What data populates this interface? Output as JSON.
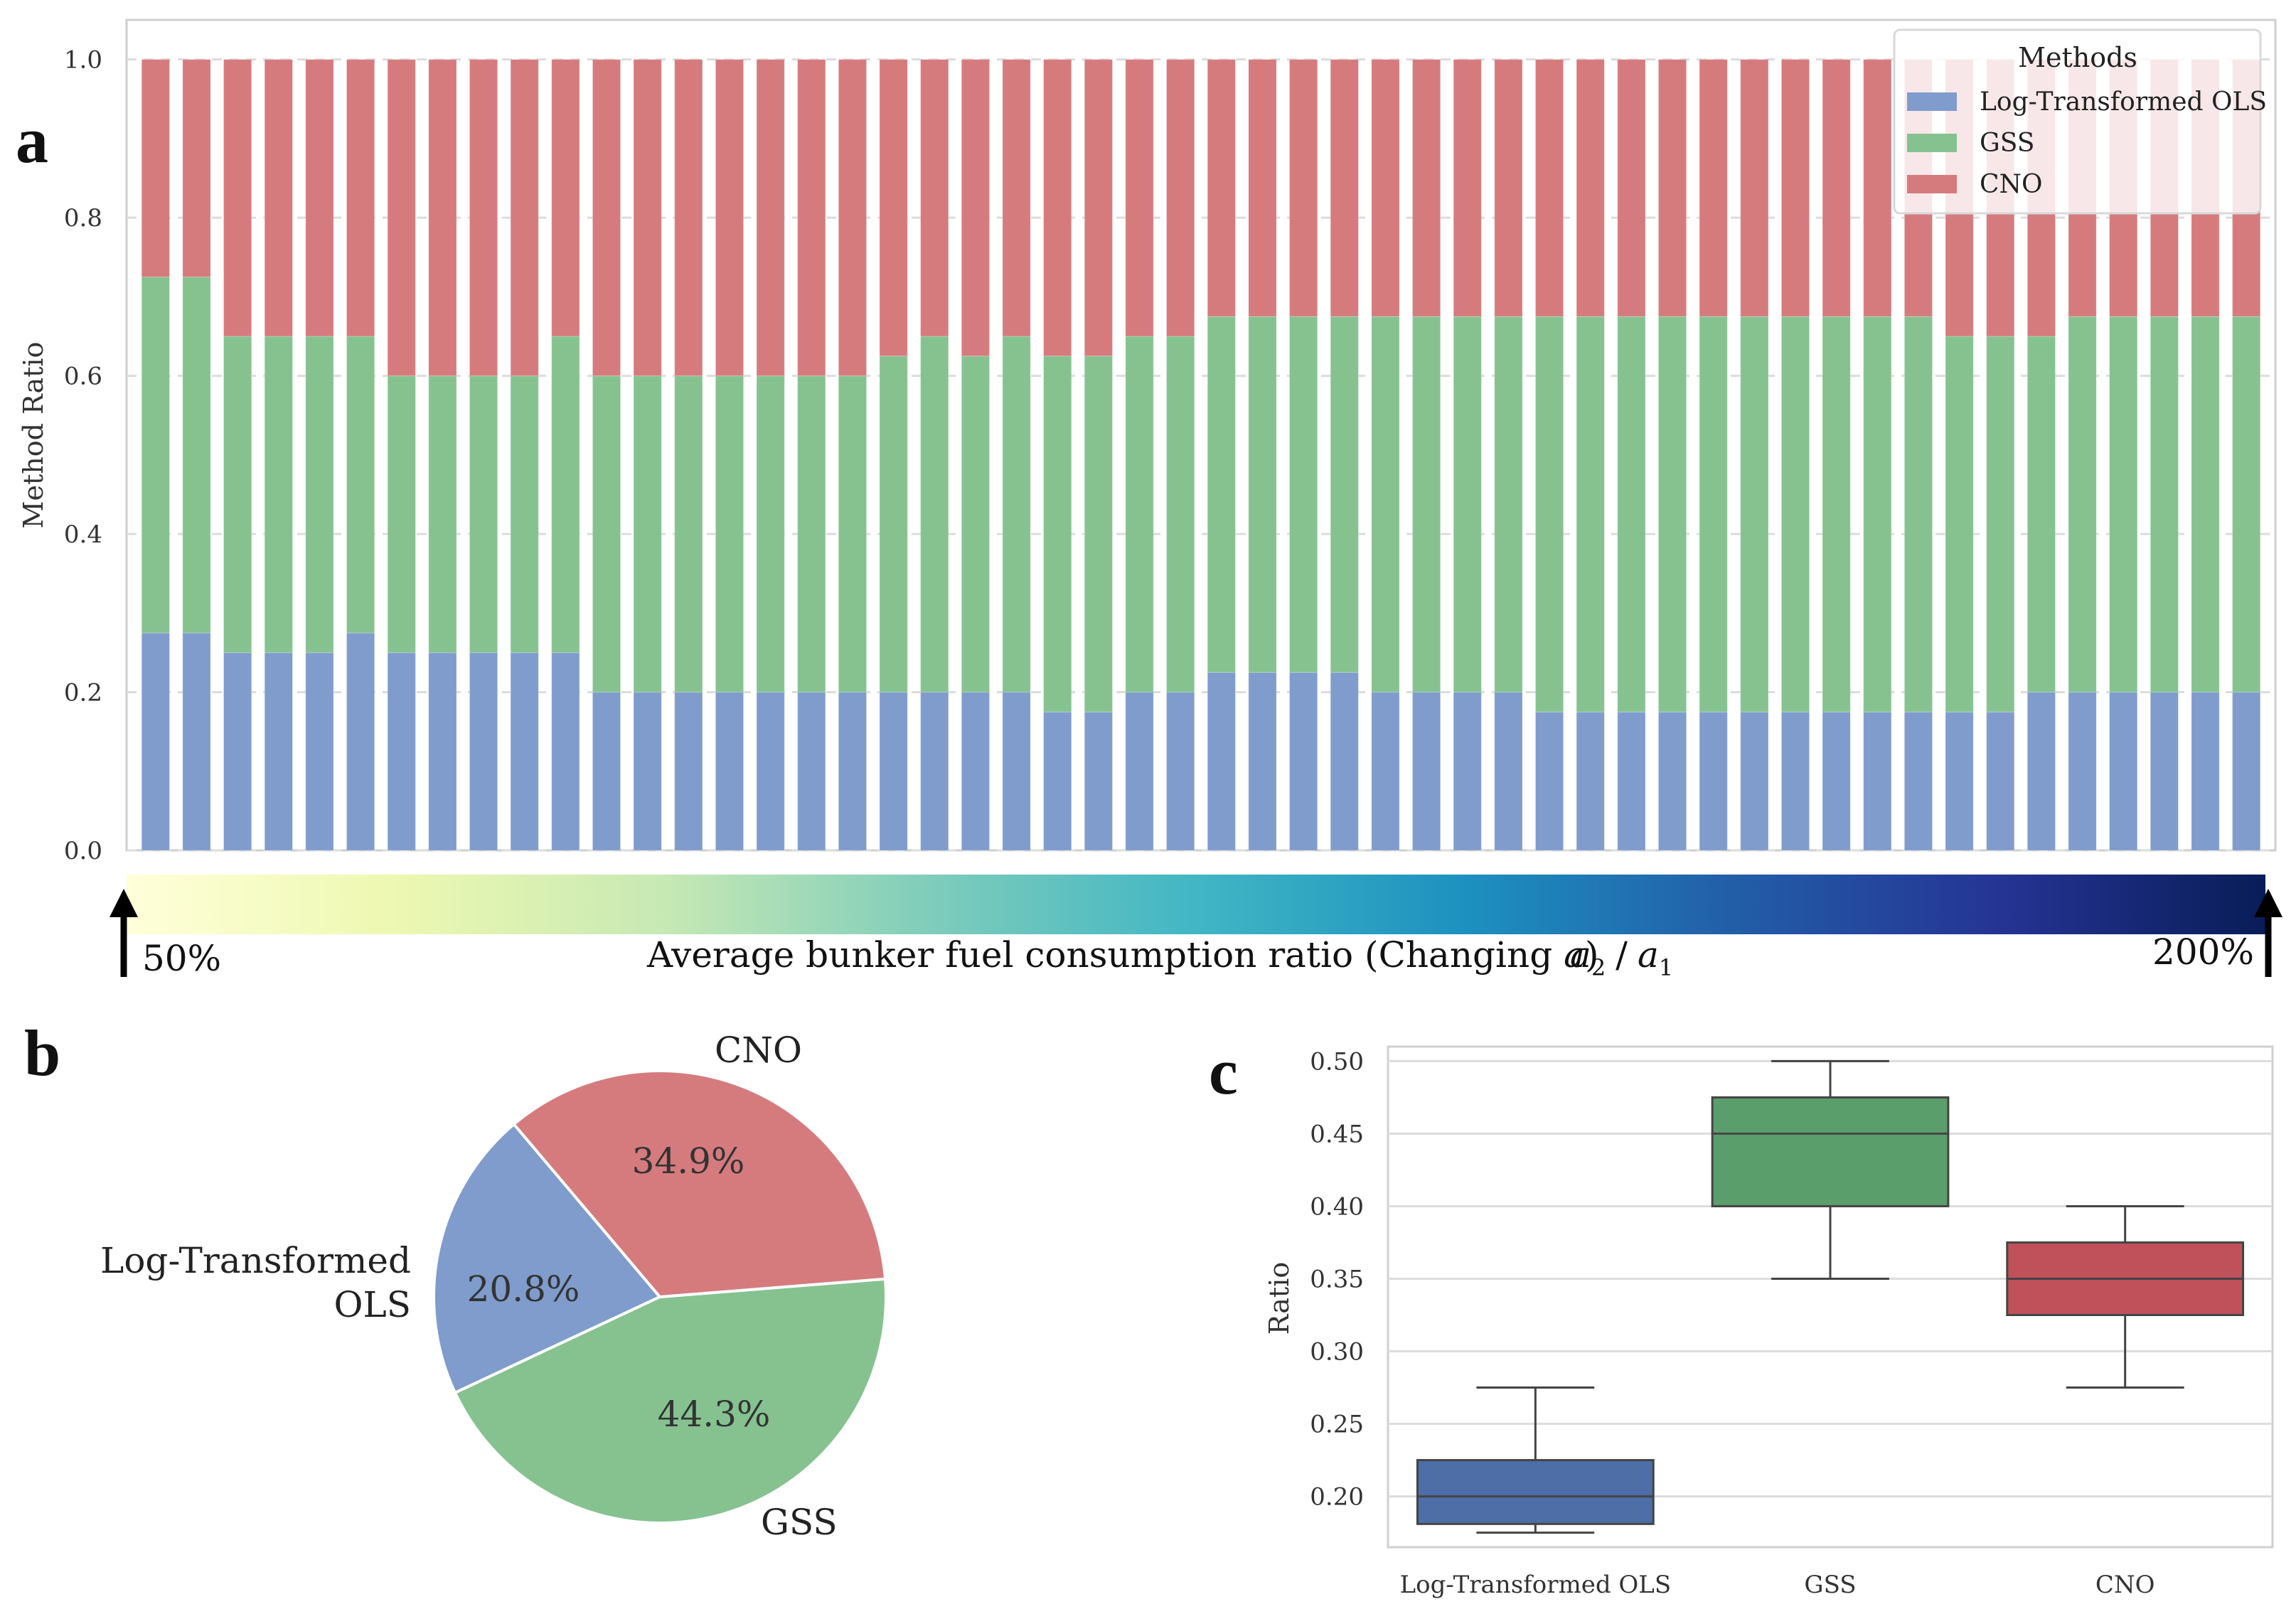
{
  "figure": {
    "panel_labels": [
      "a",
      "b",
      "c"
    ],
    "colorbar": {
      "label": "Average bunker fuel consumption ratio (Changing a)",
      "label_prefix": "Average bunker fuel consumption ratio (Changing ",
      "label_var": "a",
      "label_suffix": ")",
      "ratio_numerator": "a",
      "ratio_numerator_sub": "2",
      "ratio_sep": "/",
      "ratio_denominator": "a",
      "ratio_denominator_sub": "1",
      "min_label": "50%",
      "max_label": "200%",
      "colormap": "YlGnBu"
    }
  },
  "chart_data": [
    {
      "type": "bar",
      "stacked": true,
      "panel": "a",
      "title": "",
      "xlabel": "",
      "ylabel": "Method Ratio",
      "ylim": [
        0,
        1.05
      ],
      "yticks": [
        "0.0",
        "0.2",
        "0.4",
        "0.6",
        "0.8",
        "1.0"
      ],
      "grid": true,
      "legend": {
        "title": "Methods",
        "position": "top-right"
      },
      "series": [
        {
          "name": "Log-Transformed OLS",
          "color": "#7f9ccc",
          "values": [
            0.275,
            0.275,
            0.25,
            0.25,
            0.25,
            0.275,
            0.25,
            0.25,
            0.25,
            0.25,
            0.25,
            0.2,
            0.2,
            0.2,
            0.2,
            0.2,
            0.2,
            0.2,
            0.2,
            0.2,
            0.2,
            0.2,
            0.175,
            0.175,
            0.2,
            0.2,
            0.225,
            0.225,
            0.225,
            0.225,
            0.2,
            0.2,
            0.2,
            0.2,
            0.175,
            0.175,
            0.175,
            0.175,
            0.175,
            0.175,
            0.175,
            0.175,
            0.175,
            0.175,
            0.175,
            0.175,
            0.2,
            0.2,
            0.2,
            0.2,
            0.2,
            0.2
          ]
        },
        {
          "name": "GSS",
          "color": "#85c290",
          "values": [
            0.45,
            0.45,
            0.4,
            0.4,
            0.4,
            0.375,
            0.35,
            0.35,
            0.35,
            0.35,
            0.4,
            0.4,
            0.4,
            0.4,
            0.4,
            0.4,
            0.4,
            0.4,
            0.425,
            0.45,
            0.425,
            0.45,
            0.45,
            0.45,
            0.45,
            0.45,
            0.45,
            0.45,
            0.45,
            0.45,
            0.475,
            0.475,
            0.475,
            0.475,
            0.5,
            0.5,
            0.5,
            0.5,
            0.5,
            0.5,
            0.5,
            0.5,
            0.5,
            0.5,
            0.475,
            0.475,
            0.45,
            0.475,
            0.475,
            0.475,
            0.475,
            0.475
          ]
        },
        {
          "name": "CNO",
          "color": "#d57b7e",
          "values": [
            0.275,
            0.275,
            0.35,
            0.35,
            0.35,
            0.35,
            0.4,
            0.4,
            0.4,
            0.4,
            0.35,
            0.4,
            0.4,
            0.4,
            0.4,
            0.4,
            0.4,
            0.4,
            0.375,
            0.35,
            0.375,
            0.35,
            0.375,
            0.375,
            0.35,
            0.35,
            0.325,
            0.325,
            0.325,
            0.325,
            0.325,
            0.325,
            0.325,
            0.325,
            0.325,
            0.325,
            0.325,
            0.325,
            0.325,
            0.325,
            0.325,
            0.325,
            0.325,
            0.325,
            0.35,
            0.35,
            0.35,
            0.325,
            0.325,
            0.325,
            0.325,
            0.325
          ]
        }
      ]
    },
    {
      "type": "pie",
      "panel": "b",
      "title": "",
      "slices": [
        {
          "label": "Log-Transformed OLS",
          "label_lines": [
            "Log-Transformed",
            "OLS"
          ],
          "value": 20.8,
          "pct_label": "20.8%",
          "color": "#7f9ccc"
        },
        {
          "label": "GSS",
          "label_lines": [
            "GSS"
          ],
          "value": 44.3,
          "pct_label": "44.3%",
          "color": "#85c290"
        },
        {
          "label": "CNO",
          "label_lines": [
            "CNO"
          ],
          "value": 34.9,
          "pct_label": "34.9%",
          "color": "#d57b7e"
        }
      ]
    },
    {
      "type": "box",
      "panel": "c",
      "title": "",
      "xlabel": "",
      "ylabel": "Ratio",
      "ylim": [
        0.165,
        0.51
      ],
      "yticks": [
        "0.20",
        "0.25",
        "0.30",
        "0.35",
        "0.40",
        "0.45",
        "0.50"
      ],
      "categories": [
        "Log-Transformed OLS",
        "GSS",
        "CNO"
      ],
      "boxes": [
        {
          "name": "Log-Transformed OLS",
          "min": 0.175,
          "q1": 0.181,
          "median": 0.2,
          "q3": 0.225,
          "max": 0.275,
          "color": "#4d6ea6"
        },
        {
          "name": "GSS",
          "min": 0.35,
          "q1": 0.4,
          "median": 0.45,
          "q3": 0.475,
          "max": 0.5,
          "color": "#5a9e6c"
        },
        {
          "name": "CNO",
          "min": 0.275,
          "q1": 0.325,
          "median": 0.35,
          "q3": 0.375,
          "max": 0.4,
          "color": "#c0515b"
        }
      ]
    }
  ]
}
